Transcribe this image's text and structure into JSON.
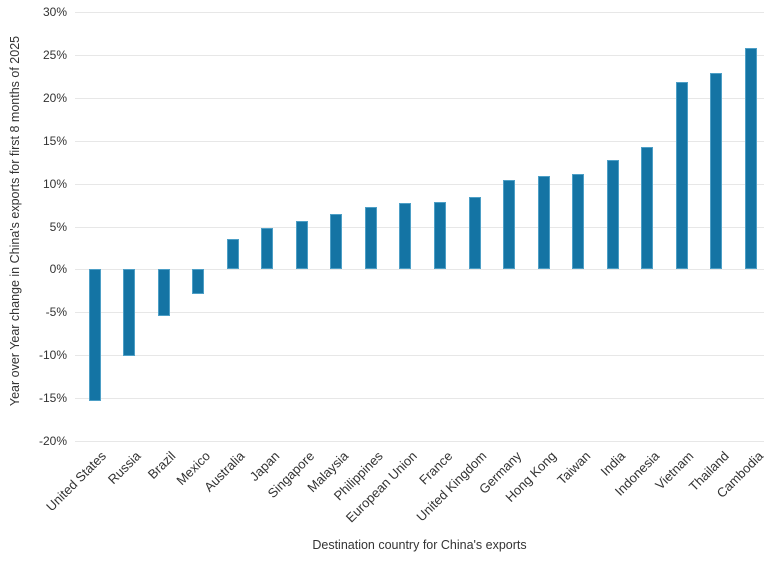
{
  "chart_data": {
    "type": "bar",
    "title": "",
    "xlabel": "Destination country for China's exports",
    "ylabel": "Year over Year change in China's exports for first 8 months of 2025",
    "categories": [
      "United States",
      "Russia",
      "Brazil",
      "Mexico",
      "Australia",
      "Japan",
      "Singapore",
      "Malaysia",
      "Philippines",
      "European Union",
      "France",
      "United Kingdom",
      "Germany",
      "Hong Kong",
      "Taiwan",
      "India",
      "Indonesia",
      "Vietnam",
      "Thailand",
      "Cambodia"
    ],
    "values": [
      -15.4,
      -10.1,
      -5.4,
      -2.9,
      3.5,
      4.8,
      5.6,
      6.5,
      7.3,
      7.7,
      7.9,
      8.4,
      10.4,
      10.9,
      11.1,
      12.7,
      14.3,
      21.8,
      22.9,
      25.8
    ],
    "ylim": [
      -20,
      30
    ],
    "ytick_values": [
      30,
      25,
      20,
      15,
      10,
      5,
      0,
      -5,
      -10,
      -15,
      -20
    ],
    "ytick_labels": [
      "30%",
      "25%",
      "20%",
      "15%",
      "10%",
      "5%",
      "0%",
      "-5%",
      "-10%",
      "-15%",
      "-20%"
    ],
    "grid": true,
    "legend_position": "none",
    "colors": {
      "bar": "#1474A4",
      "bar_edge": "#4D9FC6",
      "gridline": "#E7E7E7",
      "text": "#333333",
      "background": "#FFFFFF"
    }
  }
}
